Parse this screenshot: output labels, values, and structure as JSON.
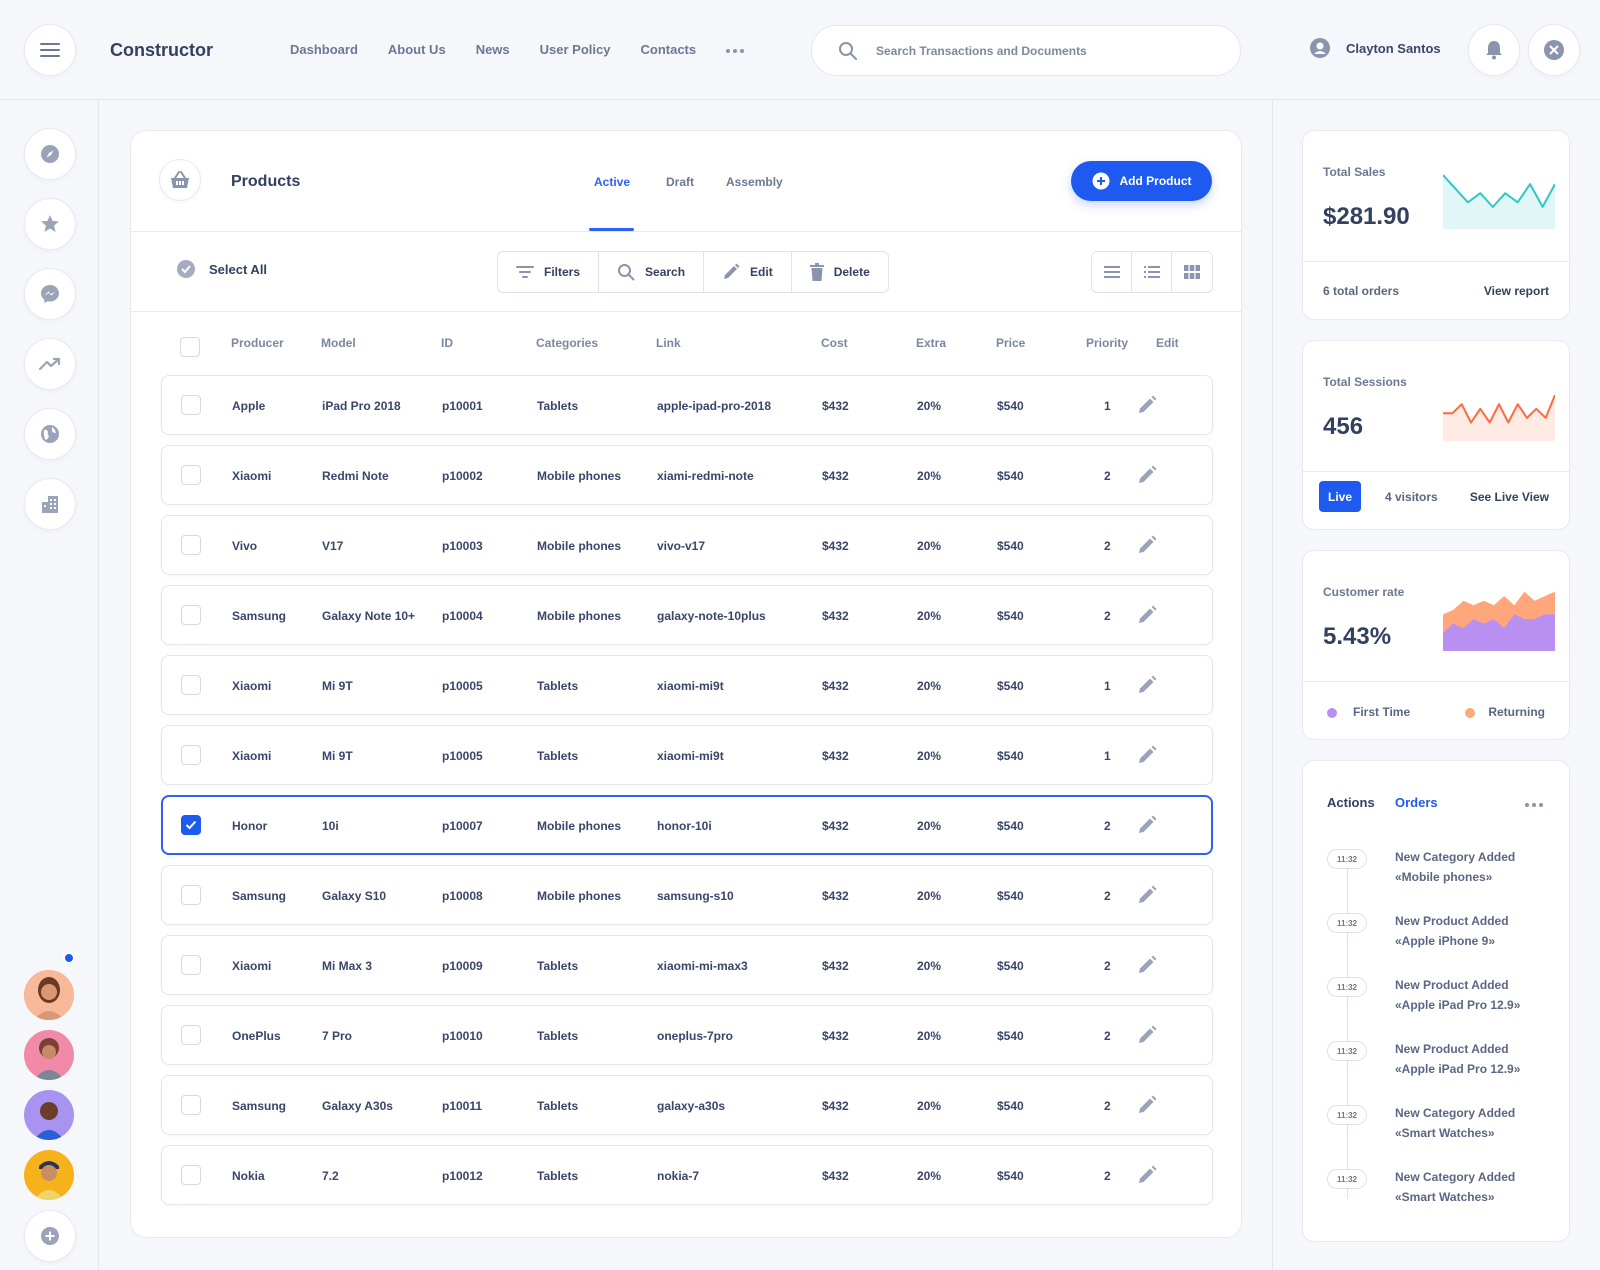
{
  "app": {
    "brand": "Constructor"
  },
  "nav": {
    "items": [
      "Dashboard",
      "About Us",
      "News",
      "User Policy",
      "Contacts"
    ]
  },
  "search": {
    "placeholder": "Search Transactions and Documents"
  },
  "user": {
    "name": "Clayton Santos"
  },
  "sidebar": {
    "icons": [
      "compass-icon",
      "star-icon",
      "messenger-icon",
      "trend-icon",
      "globe-icon",
      "building-icon"
    ]
  },
  "products": {
    "title": "Products",
    "tabs": [
      "Active",
      "Draft",
      "Assembly"
    ],
    "active_tab": "Active",
    "add_label": "Add Product",
    "select_all": "Select All",
    "toolbar": {
      "filters": "Filters",
      "search": "Search",
      "edit": "Edit",
      "delete": "Delete"
    },
    "columns": [
      "Producer",
      "Model",
      "ID",
      "Categories",
      "Link",
      "Cost",
      "Extra",
      "Price",
      "Priority",
      "Edit"
    ],
    "rows": [
      {
        "producer": "Apple",
        "model": "iPad Pro 2018",
        "id": "p10001",
        "category": "Tablets",
        "link": "apple-ipad-pro-2018",
        "cost": "$432",
        "extra": "20%",
        "price": "$540",
        "priority": "1",
        "selected": false
      },
      {
        "producer": "Xiaomi",
        "model": "Redmi Note",
        "id": "p10002",
        "category": "Mobile phones",
        "link": "xiami-redmi-note",
        "cost": "$432",
        "extra": "20%",
        "price": "$540",
        "priority": "2",
        "selected": false
      },
      {
        "producer": "Vivo",
        "model": "V17",
        "id": "p10003",
        "category": "Mobile phones",
        "link": "vivo-v17",
        "cost": "$432",
        "extra": "20%",
        "price": "$540",
        "priority": "2",
        "selected": false
      },
      {
        "producer": "Samsung",
        "model": "Galaxy Note 10+",
        "id": "p10004",
        "category": "Mobile phones",
        "link": "galaxy-note-10plus",
        "cost": "$432",
        "extra": "20%",
        "price": "$540",
        "priority": "2",
        "selected": false
      },
      {
        "producer": "Xiaomi",
        "model": "Mi 9T",
        "id": "p10005",
        "category": "Tablets",
        "link": "xiaomi-mi9t",
        "cost": "$432",
        "extra": "20%",
        "price": "$540",
        "priority": "1",
        "selected": false
      },
      {
        "producer": "Xiaomi",
        "model": "Mi 9T",
        "id": "p10005",
        "category": "Tablets",
        "link": "xiaomi-mi9t",
        "cost": "$432",
        "extra": "20%",
        "price": "$540",
        "priority": "1",
        "selected": false
      },
      {
        "producer": "Honor",
        "model": "10i",
        "id": "p10007",
        "category": "Mobile phones",
        "link": "honor-10i",
        "cost": "$432",
        "extra": "20%",
        "price": "$540",
        "priority": "2",
        "selected": true
      },
      {
        "producer": "Samsung",
        "model": "Galaxy S10",
        "id": "p10008",
        "category": "Mobile phones",
        "link": "samsung-s10",
        "cost": "$432",
        "extra": "20%",
        "price": "$540",
        "priority": "2",
        "selected": false
      },
      {
        "producer": "Xiaomi",
        "model": "Mi Max 3",
        "id": "p10009",
        "category": "Tablets",
        "link": "xiaomi-mi-max3",
        "cost": "$432",
        "extra": "20%",
        "price": "$540",
        "priority": "2",
        "selected": false
      },
      {
        "producer": "OnePlus",
        "model": "7 Pro",
        "id": "p10010",
        "category": "Tablets",
        "link": "oneplus-7pro",
        "cost": "$432",
        "extra": "20%",
        "price": "$540",
        "priority": "2",
        "selected": false
      },
      {
        "producer": "Samsung",
        "model": "Galaxy A30s",
        "id": "p10011",
        "category": "Tablets",
        "link": "galaxy-a30s",
        "cost": "$432",
        "extra": "20%",
        "price": "$540",
        "priority": "2",
        "selected": false
      },
      {
        "producer": "Nokia",
        "model": "7.2",
        "id": "p10012",
        "category": "Tablets",
        "link": "nokia-7",
        "cost": "$432",
        "extra": "20%",
        "price": "$540",
        "priority": "2",
        "selected": false
      }
    ]
  },
  "stats": {
    "sales": {
      "label": "Total Sales",
      "value": "$281.90",
      "orders": "6 total orders",
      "link": "View report",
      "color": "#2ec9c3",
      "spark": [
        8,
        5,
        2,
        4,
        1,
        4,
        2,
        6,
        1,
        6
      ]
    },
    "sessions": {
      "label": "Total Sessions",
      "value": "456",
      "live": "Live",
      "visitors": "4 visitors",
      "link": "See Live View",
      "color": "#ff6b3d",
      "spark": [
        3,
        3,
        5,
        1,
        4,
        1,
        5,
        1,
        5,
        2,
        4,
        2,
        7
      ]
    },
    "customer": {
      "label": "Customer rate",
      "value": "5.43%",
      "legend": [
        "First Time",
        "Returning"
      ],
      "colors": {
        "first": "#b98ff2",
        "returning": "#ffa77a"
      },
      "first": [
        4,
        6,
        5,
        7,
        6,
        7,
        5,
        8,
        7,
        7,
        8,
        8
      ],
      "total": [
        8,
        9,
        11,
        10,
        11,
        10,
        12,
        10,
        13,
        11,
        12,
        13
      ]
    }
  },
  "activity": {
    "tabs": [
      "Actions",
      "Orders"
    ],
    "active_tab": "Orders",
    "items": [
      {
        "time": "11:32",
        "line1": "New Category Added",
        "line2": "«Mobile phones»"
      },
      {
        "time": "11:32",
        "line1": "New Product Added",
        "line2": "«Apple iPhone 9»"
      },
      {
        "time": "11:32",
        "line1": "New Product Added",
        "line2": "«Apple iPad Pro 12.9»"
      },
      {
        "time": "11:32",
        "line1": "New Product Added",
        "line2": "«Apple iPad Pro 12.9»"
      },
      {
        "time": "11:32",
        "line1": "New Category Added",
        "line2": "«Smart Watches»"
      },
      {
        "time": "11:32",
        "line1": "New Category Added",
        "line2": "«Smart Watches»"
      }
    ]
  },
  "colors": {
    "accent": "#1f5af0",
    "text": "#3a4669",
    "muted": "#6c7893"
  }
}
